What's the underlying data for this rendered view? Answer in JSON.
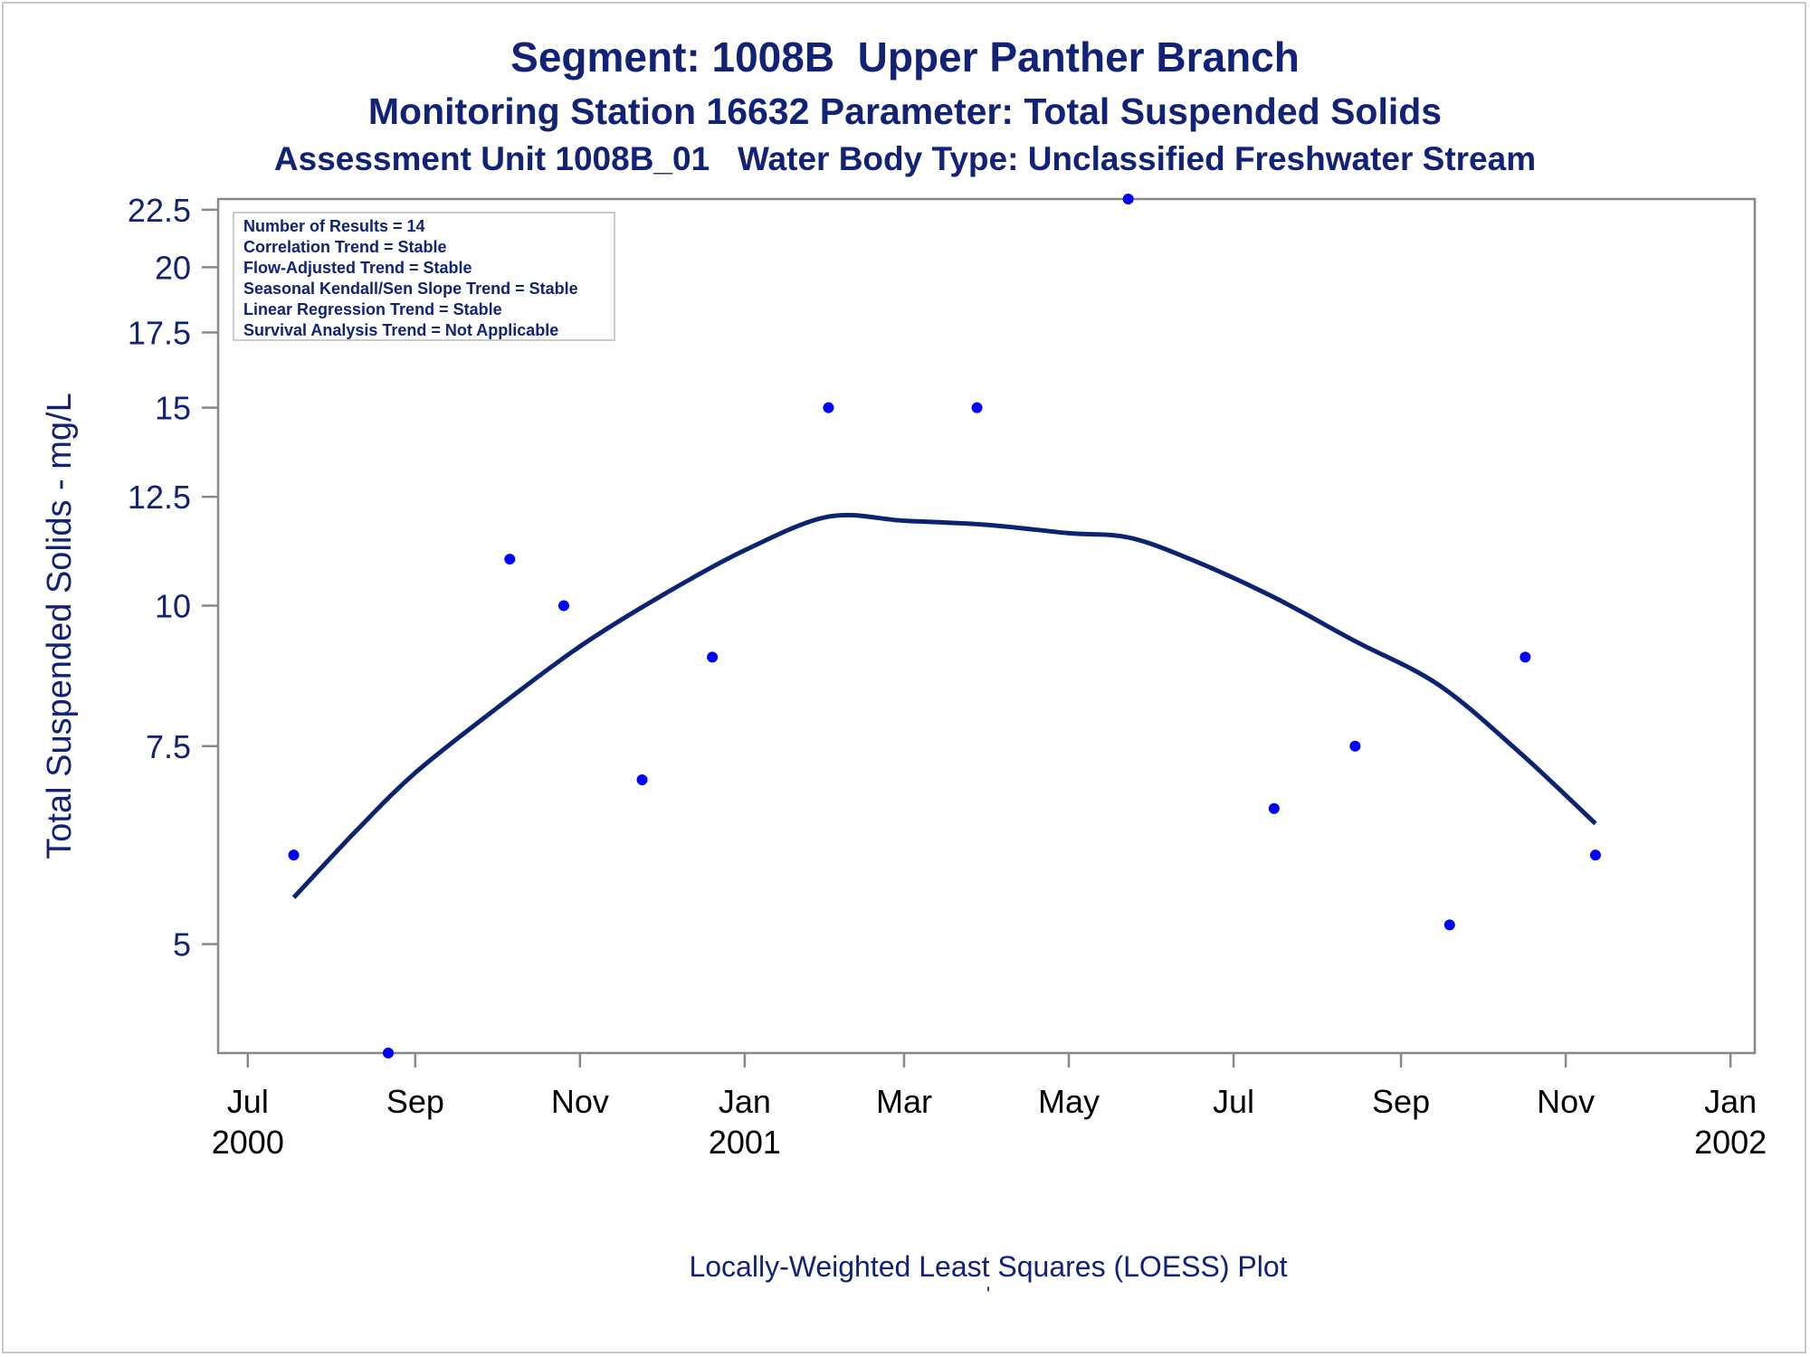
{
  "titles": {
    "line1": "Segment: 1008B  Upper Panther Branch",
    "line2": "Monitoring Station 16632 Parameter: Total Suspended Solids",
    "line3": "Assessment Unit 1008B_01   Water Body Type: Unclassified Freshwater Stream"
  },
  "footnote": {
    "line1": "Locally-Weighted Least Squares (LOESS) Plot",
    "line2": "'"
  },
  "colors": {
    "text": "#112277",
    "points": "#0000ff",
    "curve": "#0a2472",
    "axis": "#888888"
  },
  "chart_data": {
    "type": "scatter",
    "ylabel": "Total Suspended Solids - mg/L",
    "xlabel": "",
    "yscale": "log",
    "ylim": [
      4,
      23
    ],
    "xlim": [
      "2000-06-20",
      "2002-01-10"
    ],
    "yticks": [
      5,
      7.5,
      10,
      12.5,
      15,
      17.5,
      20,
      22.5
    ],
    "ytick_labels": [
      "5",
      "7.5",
      "10",
      "12.5",
      "15",
      "17.5",
      "20",
      "22.5"
    ],
    "xticks": [
      "2000-07-01",
      "2000-09-01",
      "2000-11-01",
      "2001-01-01",
      "2001-03-01",
      "2001-05-01",
      "2001-07-01",
      "2001-09-01",
      "2001-11-01",
      "2002-01-01"
    ],
    "xtick_labels": [
      [
        "Jul",
        "2000"
      ],
      [
        "Sep",
        ""
      ],
      [
        "Nov",
        ""
      ],
      [
        "Jan",
        "2001"
      ],
      [
        "Mar",
        ""
      ],
      [
        "May",
        ""
      ],
      [
        "Jul",
        ""
      ],
      [
        "Sep",
        ""
      ],
      [
        "Nov",
        ""
      ],
      [
        "Jan",
        "2002"
      ]
    ],
    "legend_box": {
      "placement": "top-left",
      "lines": [
        "Number of Results = 14",
        "Correlation Trend = Stable",
        "Flow-Adjusted Trend = Stable",
        "Seasonal Kendall/Sen Slope Trend = Stable",
        "Linear Regression Trend = Stable",
        "Survival Analysis Trend = Not Applicable"
      ]
    },
    "series": [
      {
        "kind": "points",
        "points": [
          {
            "x": "2000-07-18",
            "y": 6
          },
          {
            "x": "2000-08-22",
            "y": 4
          },
          {
            "x": "2000-10-06",
            "y": 11
          },
          {
            "x": "2000-10-26",
            "y": 10
          },
          {
            "x": "2000-11-24",
            "y": 7
          },
          {
            "x": "2000-12-20",
            "y": 9
          },
          {
            "x": "2001-02-01",
            "y": 15
          },
          {
            "x": "2001-03-28",
            "y": 15
          },
          {
            "x": "2001-05-23",
            "y": 23
          },
          {
            "x": "2001-07-16",
            "y": 6.6
          },
          {
            "x": "2001-08-15",
            "y": 7.5
          },
          {
            "x": "2001-09-19",
            "y": 5.2
          },
          {
            "x": "2001-10-17",
            "y": 9
          },
          {
            "x": "2001-11-12",
            "y": 6
          }
        ]
      },
      {
        "kind": "loess",
        "points": [
          {
            "x": "2000-07-18",
            "y": 5.5
          },
          {
            "x": "2000-08-10",
            "y": 6.3
          },
          {
            "x": "2000-09-01",
            "y": 7.1
          },
          {
            "x": "2000-10-01",
            "y": 8.1
          },
          {
            "x": "2000-11-01",
            "y": 9.2
          },
          {
            "x": "2000-12-01",
            "y": 10.2
          },
          {
            "x": "2001-01-01",
            "y": 11.2
          },
          {
            "x": "2001-02-01",
            "y": 12.0
          },
          {
            "x": "2001-03-01",
            "y": 11.9
          },
          {
            "x": "2001-04-01",
            "y": 11.8
          },
          {
            "x": "2001-05-01",
            "y": 11.6
          },
          {
            "x": "2001-05-23",
            "y": 11.5
          },
          {
            "x": "2001-06-15",
            "y": 11.0
          },
          {
            "x": "2001-07-15",
            "y": 10.2
          },
          {
            "x": "2001-08-15",
            "y": 9.3
          },
          {
            "x": "2001-09-15",
            "y": 8.5
          },
          {
            "x": "2001-10-15",
            "y": 7.4
          },
          {
            "x": "2001-11-12",
            "y": 6.4
          }
        ]
      }
    ]
  }
}
